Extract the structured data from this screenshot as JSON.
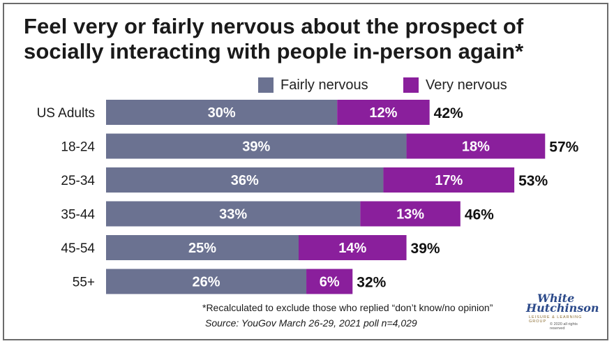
{
  "title_line1": "Feel very or fairly nervous about the prospect of",
  "title_line2": "socially interacting with people in-person again*",
  "colors": {
    "fairly": "#6b7291",
    "very": "#8a1f9c"
  },
  "chart_data": {
    "type": "bar",
    "orientation": "horizontal",
    "stacked": true,
    "categories": [
      "US Adults",
      "18-24",
      "25-34",
      "35-44",
      "45-54",
      "55+"
    ],
    "series": [
      {
        "name": "Fairly nervous",
        "values": [
          30,
          39,
          36,
          33,
          25,
          26
        ]
      },
      {
        "name": "Very nervous",
        "values": [
          12,
          18,
          17,
          13,
          14,
          6
        ]
      }
    ],
    "totals": [
      42,
      57,
      53,
      46,
      39,
      32
    ],
    "value_suffix": "%",
    "legend_position": "top",
    "grid": false
  },
  "footnote": "*Recalculated to exclude those who replied “don’t know/no opinion”",
  "source": "Source: YouGov March 26-29, 2021 poll n=4,029",
  "logo": {
    "line1": "White",
    "line2": "Hutchinson",
    "line3": "LEISURE & LEARNING GROUP",
    "line4": "© 2020 all rights reserved"
  }
}
